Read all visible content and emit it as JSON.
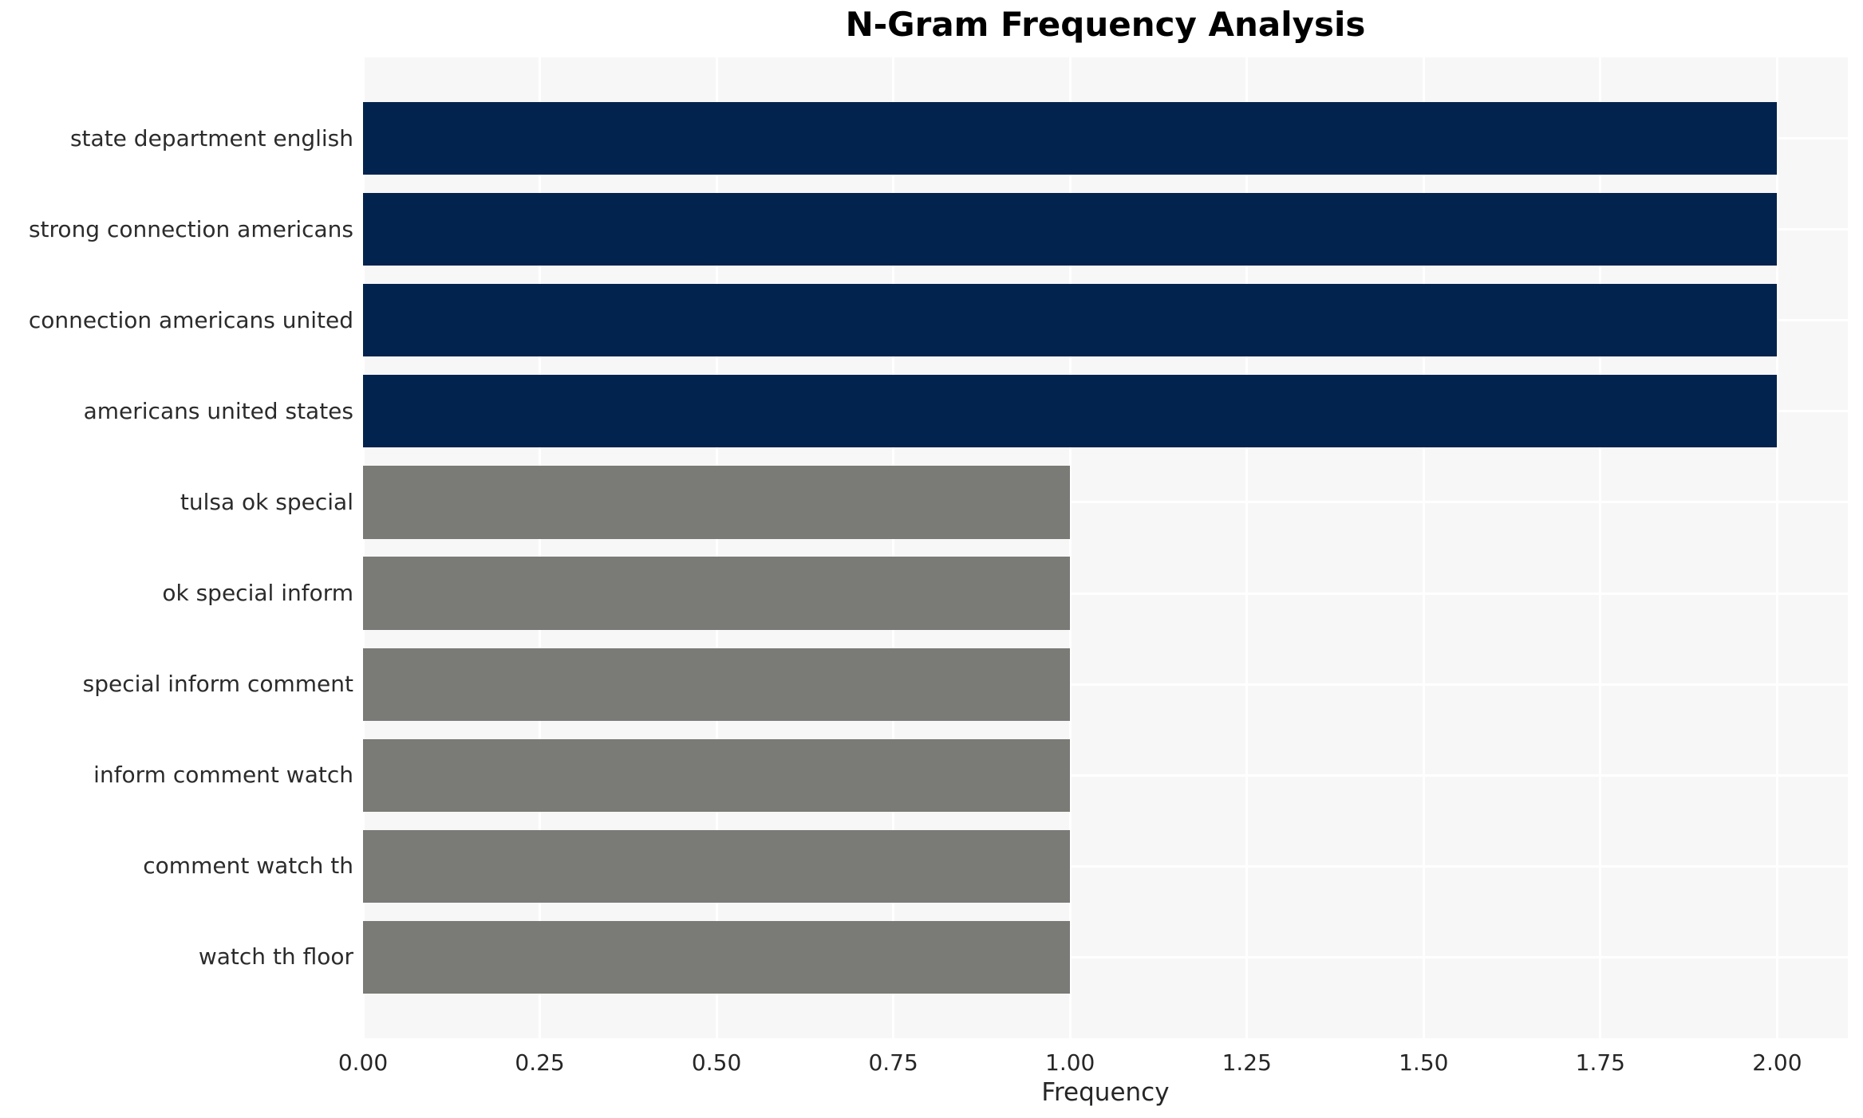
{
  "chart_data": {
    "type": "bar",
    "orientation": "horizontal",
    "title": "N-Gram Frequency Analysis",
    "xlabel": "Frequency",
    "ylabel": "",
    "categories": [
      "state department english",
      "strong connection americans",
      "connection americans united",
      "americans united states",
      "tulsa ok special",
      "ok special inform",
      "special inform comment",
      "inform comment watch",
      "comment watch th",
      "watch th floor"
    ],
    "values": [
      2,
      2,
      2,
      2,
      1,
      1,
      1,
      1,
      1,
      1
    ],
    "bar_colors": [
      "#02234e",
      "#02234e",
      "#02234e",
      "#02234e",
      "#7a7a76",
      "#7a7a76",
      "#7a7a76",
      "#7a7a76",
      "#7a7a76",
      "#7a7a76"
    ],
    "xlim": [
      0,
      2.1
    ],
    "xtick_values": [
      0,
      0.25,
      0.5,
      0.75,
      1.0,
      1.25,
      1.5,
      1.75,
      2.0
    ],
    "xtick_labels": [
      "0.00",
      "0.25",
      "0.50",
      "0.75",
      "1.00",
      "1.25",
      "1.50",
      "1.75",
      "2.00"
    ],
    "grid": true,
    "legend": "none",
    "colors": {
      "panel_bg": "#f7f7f8",
      "gridline": "#ffffff",
      "bar_high": "#02234e",
      "bar_low": "#7a7a76",
      "tick_text": "#262626",
      "title_text": "#000000"
    }
  }
}
